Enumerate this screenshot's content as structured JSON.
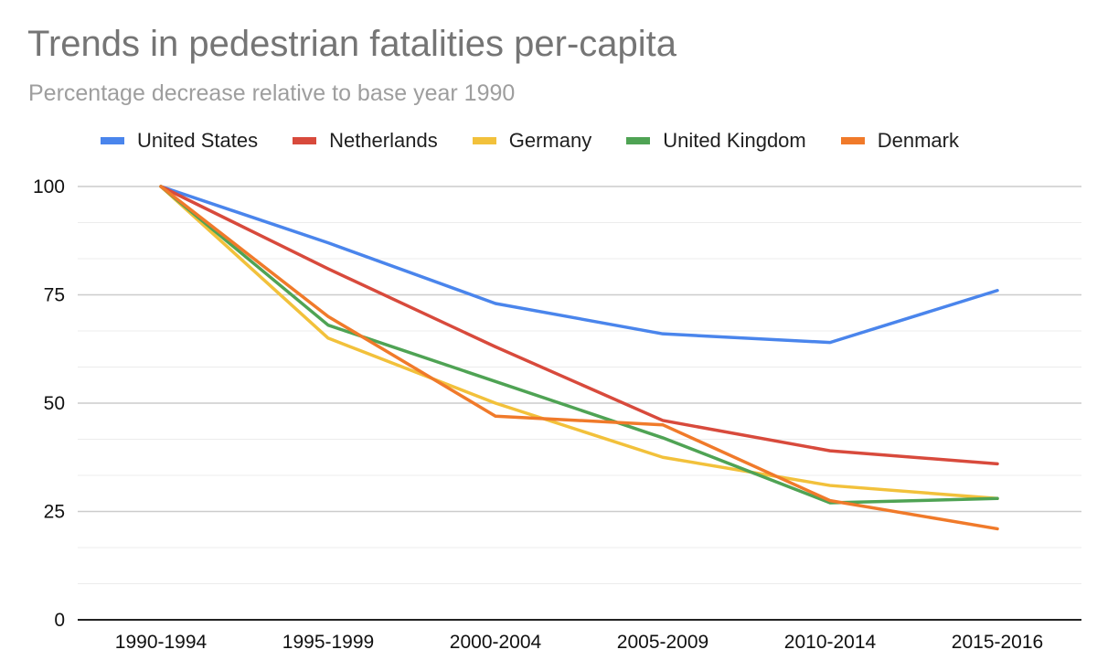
{
  "chart_data": {
    "type": "line",
    "title": "Trends in pedestrian fatalities per-capita",
    "subtitle": "Percentage decrease relative to base year 1990",
    "xlabel": "",
    "ylabel": "",
    "categories": [
      "1990-1994",
      "1995-1999",
      "2000-2004",
      "2005-2009",
      "2010-2014",
      "2015-2016"
    ],
    "ylim": [
      0,
      100
    ],
    "yticks": [
      0,
      25,
      50,
      75,
      100
    ],
    "grid": true,
    "legend_position": "top",
    "series": [
      {
        "name": "United States",
        "color": "#4a85ec",
        "values": [
          100,
          87,
          73,
          66,
          64,
          76
        ]
      },
      {
        "name": "Netherlands",
        "color": "#d84a3c",
        "values": [
          100,
          81,
          63,
          46,
          39,
          36
        ]
      },
      {
        "name": "Germany",
        "color": "#f2c13b",
        "values": [
          100,
          65,
          50,
          37.5,
          31,
          28
        ]
      },
      {
        "name": "United Kingdom",
        "color": "#4fa354",
        "values": [
          100,
          68,
          55,
          42,
          27,
          28
        ]
      },
      {
        "name": "Denmark",
        "color": "#f07a2a",
        "values": [
          100,
          70,
          47,
          45,
          27.5,
          21
        ]
      }
    ]
  }
}
